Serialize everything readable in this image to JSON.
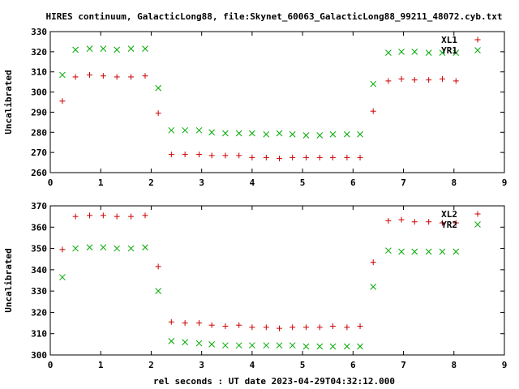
{
  "title": "HIRES continuum, GalacticLong88, file:Skynet_60063_GalacticLong88_99211_48072.cyb.txt",
  "xlabel": "rel seconds : UT date 2023-04-29T04:32:12.000",
  "chart_data": [
    {
      "type": "scatter",
      "ylabel": "Uncalibrated",
      "xlim": [
        0,
        9
      ],
      "ylim": [
        260,
        330
      ],
      "xticks": [
        "0",
        "1",
        "2",
        "3",
        "4",
        "5",
        "6",
        "7",
        "8",
        "9"
      ],
      "yticks": [
        "260",
        "270",
        "280",
        "290",
        "300",
        "310",
        "320",
        "330"
      ],
      "legend_position": "top-right",
      "series": [
        {
          "name": "XL1",
          "marker": "plus",
          "color": "#cc0000",
          "x": [
            0.24,
            0.5,
            0.78,
            1.05,
            1.32,
            1.6,
            1.88,
            2.14,
            2.4,
            2.67,
            2.95,
            3.2,
            3.47,
            3.74,
            4.0,
            4.28,
            4.54,
            4.8,
            5.07,
            5.34,
            5.6,
            5.88,
            6.14,
            6.4,
            6.7,
            6.96,
            7.22,
            7.5,
            7.77,
            8.04
          ],
          "y": [
            295.5,
            307.5,
            308.5,
            308,
            307.5,
            307.5,
            308,
            289.5,
            269,
            269,
            269,
            268.5,
            268.5,
            268.5,
            267.5,
            267.5,
            267,
            267.5,
            267.5,
            267.5,
            267.5,
            267.5,
            267.5,
            290.5,
            305.5,
            306.5,
            306,
            306,
            306.5,
            305.5
          ]
        },
        {
          "name": "YR1",
          "marker": "cross",
          "color": "#00aa00",
          "x": [
            0.24,
            0.5,
            0.78,
            1.05,
            1.32,
            1.6,
            1.88,
            2.14,
            2.4,
            2.67,
            2.95,
            3.2,
            3.47,
            3.74,
            4.0,
            4.28,
            4.54,
            4.8,
            5.07,
            5.34,
            5.6,
            5.88,
            6.14,
            6.4,
            6.7,
            6.96,
            7.22,
            7.5,
            7.77,
            8.04
          ],
          "y": [
            308.5,
            321,
            321.5,
            321.5,
            321,
            321.5,
            321.5,
            302,
            281,
            281,
            281,
            280,
            279.5,
            279.5,
            279.5,
            279,
            279.5,
            279,
            278.5,
            278.5,
            279,
            279,
            279,
            304,
            319.5,
            320,
            320,
            319.5,
            319.5,
            319.5
          ]
        }
      ]
    },
    {
      "type": "scatter",
      "ylabel": "Uncalibrated",
      "xlim": [
        0,
        9
      ],
      "ylim": [
        300,
        370
      ],
      "xticks": [
        "0",
        "1",
        "2",
        "3",
        "4",
        "5",
        "6",
        "7",
        "8",
        "9"
      ],
      "yticks": [
        "300",
        "310",
        "320",
        "330",
        "340",
        "350",
        "360",
        "370"
      ],
      "legend_position": "top-right",
      "series": [
        {
          "name": "XL2",
          "marker": "plus",
          "color": "#cc0000",
          "x": [
            0.24,
            0.5,
            0.78,
            1.05,
            1.32,
            1.6,
            1.88,
            2.14,
            2.4,
            2.67,
            2.95,
            3.2,
            3.47,
            3.74,
            4.0,
            4.28,
            4.54,
            4.8,
            5.07,
            5.34,
            5.6,
            5.88,
            6.14,
            6.4,
            6.7,
            6.96,
            7.22,
            7.5,
            7.77,
            8.04
          ],
          "y": [
            349.5,
            365,
            365.5,
            365.5,
            365,
            365,
            365.5,
            341.5,
            315.5,
            315,
            315,
            314,
            313.5,
            314,
            313,
            313,
            312.5,
            313,
            313,
            313,
            313.5,
            313,
            313.5,
            343.5,
            363,
            363.5,
            362.5,
            362.5,
            362,
            362
          ]
        },
        {
          "name": "YR2",
          "marker": "cross",
          "color": "#00aa00",
          "x": [
            0.24,
            0.5,
            0.78,
            1.05,
            1.32,
            1.6,
            1.88,
            2.14,
            2.4,
            2.67,
            2.95,
            3.2,
            3.47,
            3.74,
            4.0,
            4.28,
            4.54,
            4.8,
            5.07,
            5.34,
            5.6,
            5.88,
            6.14,
            6.4,
            6.7,
            6.96,
            7.22,
            7.5,
            7.77,
            8.04
          ],
          "y": [
            336.5,
            350,
            350.5,
            350.5,
            350,
            350,
            350.5,
            330,
            306.5,
            306,
            305.5,
            305,
            304.5,
            304.5,
            304.5,
            304.5,
            304.5,
            304.5,
            304,
            304,
            304,
            304,
            304,
            332,
            349,
            348.5,
            348.5,
            348.5,
            348.5,
            348.5
          ]
        }
      ]
    }
  ]
}
